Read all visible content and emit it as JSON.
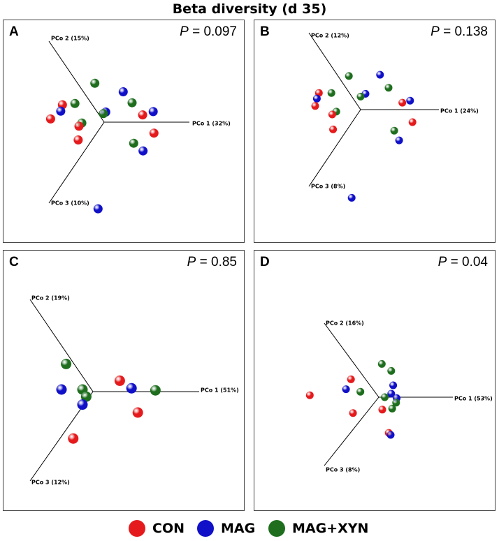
{
  "title": "Beta diversity (d 35)",
  "groups": [
    {
      "key": "CON",
      "label": "CON",
      "color": "#e41a1c"
    },
    {
      "key": "MAG",
      "label": "MAG",
      "color": "#1010c8"
    },
    {
      "key": "MAGXYN",
      "label": "MAG+XYN",
      "color": "#1e6e1e"
    }
  ],
  "chart_data": [
    {
      "type": "scatter",
      "panel": "A",
      "p_prefix": "P",
      "p_value": "= 0.097",
      "axes": [
        "PCo 1 (32%)",
        "PCo 2 (15%)",
        "PCo 3 (10%)"
      ],
      "points": [
        {
          "g": "MAGXYN",
          "x": -0.23,
          "y": 0.96
        },
        {
          "g": "MAG",
          "x": 0.47,
          "y": 0.75
        },
        {
          "g": "MAGXYN",
          "x": 0.69,
          "y": 0.48
        },
        {
          "g": "MAG",
          "x": 1.21,
          "y": 0.26
        },
        {
          "g": "CON",
          "x": 0.95,
          "y": 0.18
        },
        {
          "g": "CON",
          "x": 1.23,
          "y": -0.27
        },
        {
          "g": "MAGXYN",
          "x": 0.73,
          "y": -0.52
        },
        {
          "g": "MAG",
          "x": 0.96,
          "y": -0.71
        },
        {
          "g": "MAG",
          "x": 0.04,
          "y": 0.25
        },
        {
          "g": "MAGXYN",
          "x": -0.02,
          "y": 0.21
        },
        {
          "g": "CON",
          "x": -1.03,
          "y": 0.43
        },
        {
          "g": "MAGXYN",
          "x": -0.72,
          "y": 0.46
        },
        {
          "g": "MAG",
          "x": -1.07,
          "y": 0.27
        },
        {
          "g": "CON",
          "x": -1.32,
          "y": 0.08
        },
        {
          "g": "MAGXYN",
          "x": -0.55,
          "y": -0.02
        },
        {
          "g": "CON",
          "x": -0.62,
          "y": -0.1
        },
        {
          "g": "CON",
          "x": -0.64,
          "y": -0.44
        },
        {
          "g": "MAG",
          "x": -0.15,
          "y": -2.14
        }
      ]
    },
    {
      "type": "scatter",
      "panel": "B",
      "p_prefix": "P",
      "p_value": "= 0.138",
      "axes": [
        "PCo 1 (24%)",
        "PCo 2 (12%)",
        "PCo 3 (8%)"
      ],
      "points": [
        {
          "g": "MAGXYN",
          "x": -0.29,
          "y": 0.83
        },
        {
          "g": "MAG",
          "x": 0.48,
          "y": 0.86
        },
        {
          "g": "MAGXYN",
          "x": 0.69,
          "y": 0.54
        },
        {
          "g": "MAG",
          "x": 0.12,
          "y": 0.39
        },
        {
          "g": "MAGXYN",
          "x": 0.0,
          "y": 0.32
        },
        {
          "g": "CON",
          "x": 1.03,
          "y": 0.17
        },
        {
          "g": "MAG",
          "x": 1.22,
          "y": 0.22
        },
        {
          "g": "CON",
          "x": 1.28,
          "y": -0.31
        },
        {
          "g": "MAGXYN",
          "x": 0.83,
          "y": -0.52
        },
        {
          "g": "MAG",
          "x": 0.95,
          "y": -0.76
        },
        {
          "g": "CON",
          "x": -1.03,
          "y": 0.41
        },
        {
          "g": "MAG",
          "x": -1.08,
          "y": 0.27
        },
        {
          "g": "MAGXYN",
          "x": -0.72,
          "y": 0.41
        },
        {
          "g": "CON",
          "x": -1.12,
          "y": 0.09
        },
        {
          "g": "MAGXYN",
          "x": -0.6,
          "y": -0.05
        },
        {
          "g": "CON",
          "x": -0.7,
          "y": -0.12
        },
        {
          "g": "CON",
          "x": -0.68,
          "y": -0.49
        },
        {
          "g": "MAG",
          "x": -0.22,
          "y": -2.18
        }
      ]
    },
    {
      "type": "scatter",
      "panel": "C",
      "p_prefix": "P",
      "p_value": "= 0.85",
      "axes": [
        "PCo 1 (51%)",
        "PCo 2 (19%)",
        "PCo 3 (12%)"
      ],
      "points": [
        {
          "g": "MAGXYN",
          "x": -0.64,
          "y": 0.66
        },
        {
          "g": "MAG",
          "x": -0.75,
          "y": 0.05
        },
        {
          "g": "MAGXYN",
          "x": -0.25,
          "y": 0.05
        },
        {
          "g": "MAGXYN",
          "x": -0.16,
          "y": -0.12
        },
        {
          "g": "MAG",
          "x": -0.25,
          "y": -0.31
        },
        {
          "g": "CON",
          "x": 0.64,
          "y": 0.26
        },
        {
          "g": "MAG",
          "x": 0.92,
          "y": 0.08
        },
        {
          "g": "MAGXYN",
          "x": 1.49,
          "y": 0.03
        },
        {
          "g": "CON",
          "x": 1.07,
          "y": -0.5
        },
        {
          "g": "CON",
          "x": -0.47,
          "y": -1.12
        }
      ]
    },
    {
      "type": "scatter",
      "panel": "D",
      "p_prefix": "P",
      "p_value": "= 0.04",
      "axes": [
        "PCo 1 (53%)",
        "PCo 2 (16%)",
        "PCo 3 (8%)"
      ],
      "points": [
        {
          "g": "MAGXYN",
          "x": 0.06,
          "y": 0.67
        },
        {
          "g": "MAGXYN",
          "x": 0.25,
          "y": 0.53
        },
        {
          "g": "MAG",
          "x": 0.29,
          "y": 0.24
        },
        {
          "g": "MAG",
          "x": 0.25,
          "y": 0.07
        },
        {
          "g": "MAGXYN",
          "x": 0.12,
          "y": 0.0
        },
        {
          "g": "MAG",
          "x": 0.36,
          "y": -0.02
        },
        {
          "g": "MAGXYN",
          "x": 0.35,
          "y": -0.11
        },
        {
          "g": "MAGXYN",
          "x": 0.27,
          "y": -0.23
        },
        {
          "g": "CON",
          "x": 0.07,
          "y": -0.25
        },
        {
          "g": "CON",
          "x": -0.56,
          "y": 0.36
        },
        {
          "g": "MAG",
          "x": -0.66,
          "y": 0.16
        },
        {
          "g": "MAGXYN",
          "x": -0.37,
          "y": 0.11
        },
        {
          "g": "CON",
          "x": -1.39,
          "y": 0.04
        },
        {
          "g": "CON",
          "x": -0.52,
          "y": -0.32
        },
        {
          "g": "CON",
          "x": 0.2,
          "y": -0.72
        },
        {
          "g": "MAG",
          "x": 0.24,
          "y": -0.76
        }
      ]
    }
  ]
}
